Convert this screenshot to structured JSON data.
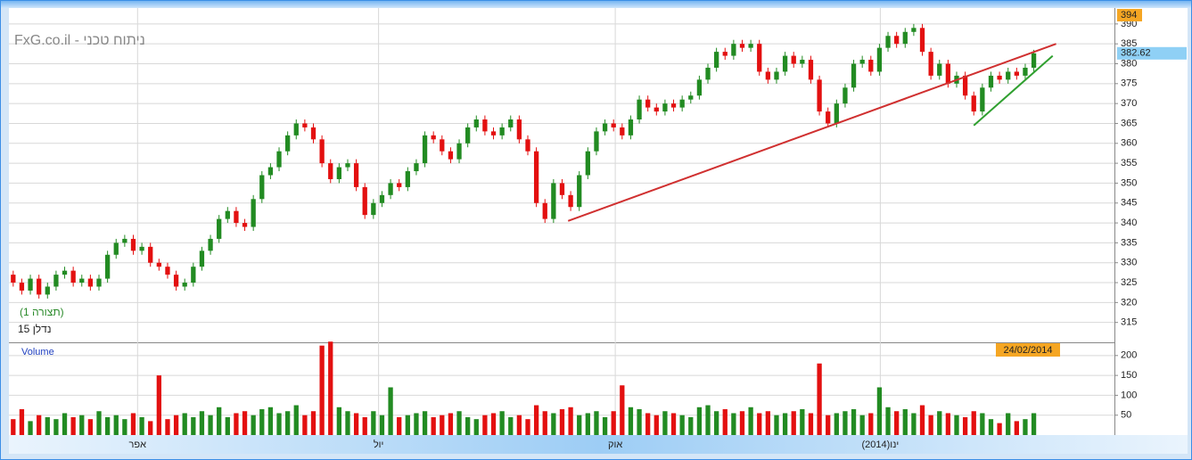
{
  "chart_data": {
    "type": "candlestick",
    "title": "FxG.co.il - ניתוח טכני",
    "subtitle": "(תצורה 1)",
    "symbol": "נדלן 15",
    "volume_title": "Volume",
    "date_label": "24/02/2014",
    "up_color": "#228B22",
    "down_color": "#E31010",
    "grid": true,
    "xlim": [
      -0.5,
      128.4
    ],
    "xticks": [
      {
        "value": 14.5,
        "label": "אפר"
      },
      {
        "value": 42.6,
        "label": "יול"
      },
      {
        "value": 70.2,
        "label": "אוק"
      },
      {
        "value": 101.1,
        "label": "(2014)ינו"
      }
    ],
    "ylim": [
      310,
      394
    ],
    "yticks": [
      315,
      320,
      325,
      330,
      335,
      340,
      345,
      350,
      355,
      360,
      365,
      370,
      375,
      380,
      385,
      390
    ],
    "y2lim": [
      0,
      231
    ],
    "y2ticks": [
      50,
      100,
      150,
      200
    ],
    "open": [
      327,
      325,
      323,
      326,
      322,
      324,
      327,
      328,
      325,
      326,
      324,
      326,
      332,
      335,
      336,
      333,
      334,
      330,
      329,
      327,
      324,
      325,
      329,
      333,
      336,
      341,
      343,
      340,
      339,
      346,
      352,
      354,
      358,
      362,
      365,
      364,
      361,
      355,
      351,
      354,
      355,
      349,
      342,
      345,
      347,
      350,
      349,
      353,
      355,
      362,
      361,
      358,
      356,
      360,
      364,
      366,
      363,
      362,
      364,
      366,
      361,
      358,
      345,
      341,
      350,
      347,
      344,
      352,
      358,
      363,
      365,
      364,
      362,
      366,
      371,
      369,
      368,
      370,
      369,
      371,
      372,
      376,
      379,
      383,
      382,
      385,
      384,
      385,
      378,
      376,
      378,
      382,
      380,
      381,
      376,
      368,
      365,
      370,
      374,
      380,
      381,
      378,
      384,
      387,
      385,
      388,
      389,
      383,
      377,
      380,
      375,
      377,
      372,
      368,
      374,
      377,
      376,
      378,
      377,
      379
    ],
    "high": [
      328,
      326,
      327,
      327,
      325,
      328,
      329,
      329,
      327,
      327,
      327,
      333,
      336,
      337,
      337,
      335,
      335,
      331,
      330,
      328,
      326,
      330,
      334,
      337,
      342,
      344,
      344,
      341,
      347,
      353,
      355,
      359,
      363,
      366,
      366,
      365,
      362,
      356,
      355,
      356,
      356,
      350,
      346,
      348,
      351,
      351,
      354,
      356,
      363,
      363,
      362,
      359,
      361,
      365,
      367,
      367,
      364,
      365,
      367,
      367,
      362,
      359,
      346,
      351,
      351,
      348,
      353,
      359,
      364,
      366,
      366,
      365,
      367,
      372,
      372,
      370,
      371,
      371,
      372,
      373,
      377,
      380,
      384,
      384,
      386,
      386,
      386,
      386,
      379,
      379,
      383,
      383,
      382,
      382,
      377,
      369,
      371,
      375,
      381,
      382,
      382,
      385,
      388,
      388,
      389,
      390,
      390,
      384,
      381,
      381,
      378,
      378,
      373,
      375,
      378,
      378,
      379,
      379,
      380,
      383.5
    ],
    "low": [
      324,
      322,
      322,
      321,
      321,
      323,
      326,
      324,
      324,
      323,
      323,
      325,
      331,
      334,
      332,
      332,
      329,
      328,
      326,
      323,
      323,
      324,
      328,
      332,
      335,
      340,
      339,
      338,
      338,
      345,
      351,
      353,
      357,
      361,
      363,
      360,
      354,
      350,
      350,
      353,
      348,
      341,
      341,
      344,
      346,
      348,
      348,
      352,
      354,
      360,
      357,
      355,
      355,
      359,
      363,
      362,
      361,
      361,
      363,
      360,
      357,
      344,
      340,
      340,
      346,
      343,
      343,
      351,
      357,
      362,
      363,
      361,
      361,
      365,
      368,
      367,
      367,
      368,
      368,
      370,
      371,
      375,
      378,
      381,
      381,
      383,
      383,
      377,
      375,
      375,
      377,
      379,
      379,
      375,
      367,
      364,
      364,
      369,
      373,
      379,
      377,
      377,
      383,
      384,
      384,
      387,
      382,
      376,
      376,
      374,
      374,
      371,
      367,
      367,
      373,
      375,
      375,
      376,
      376,
      378
    ],
    "close": [
      325,
      323,
      326,
      322,
      324,
      327,
      328,
      325,
      326,
      324,
      326,
      332,
      335,
      336,
      333,
      334,
      330,
      329,
      327,
      324,
      325,
      329,
      333,
      336,
      341,
      343,
      340,
      339,
      346,
      352,
      354,
      358,
      362,
      365,
      364,
      361,
      355,
      351,
      354,
      355,
      349,
      342,
      345,
      347,
      350,
      349,
      353,
      355,
      362,
      361,
      358,
      356,
      360,
      364,
      366,
      363,
      362,
      364,
      366,
      361,
      358,
      345,
      341,
      350,
      347,
      344,
      352,
      358,
      363,
      365,
      364,
      362,
      366,
      371,
      369,
      368,
      370,
      369,
      371,
      372,
      376,
      379,
      383,
      382,
      385,
      384,
      385,
      378,
      376,
      378,
      382,
      380,
      381,
      376,
      368,
      365,
      370,
      374,
      380,
      381,
      378,
      384,
      387,
      385,
      388,
      389,
      383,
      377,
      380,
      375,
      377,
      372,
      368,
      374,
      377,
      376,
      378,
      377,
      379,
      382.62
    ],
    "volume": [
      40,
      65,
      35,
      50,
      45,
      40,
      55,
      45,
      50,
      40,
      60,
      45,
      50,
      40,
      55,
      45,
      35,
      150,
      40,
      50,
      55,
      45,
      60,
      50,
      70,
      45,
      55,
      60,
      50,
      65,
      70,
      55,
      60,
      75,
      50,
      60,
      225,
      235,
      70,
      60,
      55,
      45,
      60,
      50,
      120,
      45,
      50,
      55,
      60,
      45,
      50,
      55,
      60,
      45,
      40,
      50,
      55,
      60,
      45,
      50,
      40,
      75,
      60,
      55,
      65,
      70,
      50,
      55,
      60,
      45,
      60,
      125,
      70,
      65,
      55,
      50,
      60,
      55,
      50,
      45,
      70,
      75,
      60,
      65,
      55,
      60,
      70,
      55,
      60,
      50,
      55,
      60,
      65,
      55,
      180,
      50,
      55,
      60,
      65,
      50,
      55,
      120,
      70,
      60,
      65,
      55,
      75,
      50,
      60,
      55,
      50,
      45,
      60,
      55,
      40,
      30,
      55,
      35,
      40,
      55
    ],
    "trendlines": [
      {
        "color": "#D03030",
        "x": [
          64.7,
          121.6
        ],
        "y": [
          340.5,
          385
        ]
      },
      {
        "color": "#30A030",
        "x": [
          112,
          121.2
        ],
        "y": [
          364.5,
          382
        ]
      }
    ]
  }
}
